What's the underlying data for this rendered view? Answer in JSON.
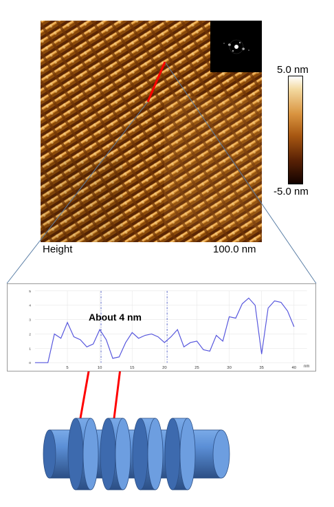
{
  "image_labels": {
    "height": "Height",
    "scale": "100.0 nm",
    "colorbar_max": "5.0 nm",
    "colorbar_min": "-5.0 nm"
  },
  "annotation": "About 4 nm",
  "colors": {
    "afm_dark": "#4a1e03",
    "afm_mid": "#a8600f",
    "afm_light": "#f0b860",
    "red_marker": "#ff0000",
    "zoom_lines": "#5b7fa6",
    "profile_line": "#5555dd",
    "cylinder": "#5b8fd6"
  },
  "chart_data": {
    "type": "line",
    "title": "",
    "xlabel": "nm",
    "ylabel": "",
    "xlim": [
      0,
      42
    ],
    "ylim": [
      0,
      5
    ],
    "x_ticks": [
      5,
      10,
      15,
      20,
      25,
      30,
      35,
      40
    ],
    "y_ticks": [
      0,
      1,
      2,
      3,
      4,
      5
    ],
    "grid": true,
    "markers_x": [
      10.2,
      20.4
    ],
    "x": [
      0,
      1,
      2,
      3,
      4,
      5,
      6,
      7,
      8,
      9,
      10,
      11,
      12,
      13,
      14,
      15,
      16,
      17,
      18,
      19,
      20,
      21,
      22,
      23,
      24,
      25,
      26,
      27,
      28,
      29,
      30,
      31,
      32,
      33,
      34,
      35,
      36,
      37,
      38,
      39,
      40
    ],
    "y": [
      0.0,
      0.0,
      0.0,
      2.0,
      1.7,
      2.8,
      1.8,
      1.6,
      1.1,
      1.3,
      2.3,
      1.6,
      0.3,
      0.4,
      1.4,
      2.1,
      1.7,
      1.9,
      2.0,
      1.8,
      1.4,
      1.8,
      2.3,
      1.1,
      1.4,
      1.5,
      0.9,
      0.8,
      1.9,
      1.5,
      3.2,
      3.1,
      4.1,
      4.5,
      4.0,
      0.6,
      3.8,
      4.3,
      4.2,
      3.6,
      2.5
    ]
  }
}
